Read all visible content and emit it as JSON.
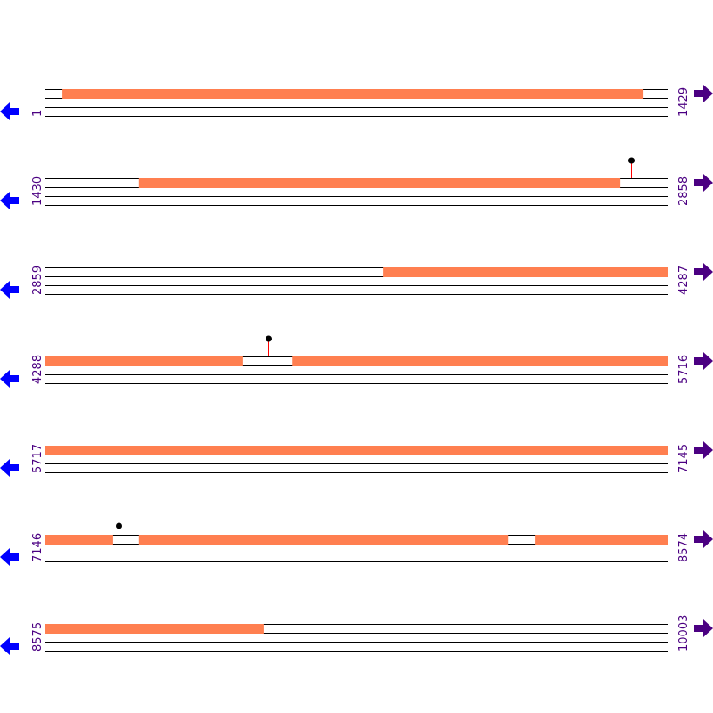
{
  "colors": {
    "feature": "#ff7f50",
    "line": "#000000",
    "marker_stem": "#ff0000",
    "marker_head": "#000000",
    "left_arrow": "#0000ff",
    "right_arrow": "#4b0082",
    "numbers": "#4b0082"
  },
  "icons": {
    "left": "arrow-left-icon",
    "right": "arrow-right-icon"
  },
  "rows": [
    {
      "start": "1",
      "end": "1429",
      "features": [
        [
          42,
          1373
        ]
      ],
      "markers": []
    },
    {
      "start": "1430",
      "end": "2858",
      "features": [
        [
          1646,
          2749
        ]
      ],
      "markers": [
        {
          "pos": 2773,
          "stem": "long"
        }
      ]
    },
    {
      "start": "2859",
      "end": "4287",
      "features": [
        [
          3635,
          4287
        ]
      ],
      "markers": []
    },
    {
      "start": "4288",
      "end": "5716",
      "features": [
        [
          4288,
          4743
        ],
        [
          4856,
          5716
        ]
      ],
      "markers": [
        {
          "pos": 4800,
          "stem": "long"
        }
      ]
    },
    {
      "start": "5717",
      "end": "7145",
      "features": [
        [
          5717,
          7145
        ]
      ],
      "markers": []
    },
    {
      "start": "7146",
      "end": "8574",
      "features": [
        [
          7146,
          7303
        ],
        [
          7362,
          8208
        ],
        [
          8269,
          8574
        ]
      ],
      "markers": [
        {
          "pos": 7315,
          "stem": "short"
        }
      ]
    },
    {
      "start": "8575",
      "end": "10003",
      "features": [
        [
          8575,
          9077
        ]
      ],
      "markers": []
    }
  ]
}
